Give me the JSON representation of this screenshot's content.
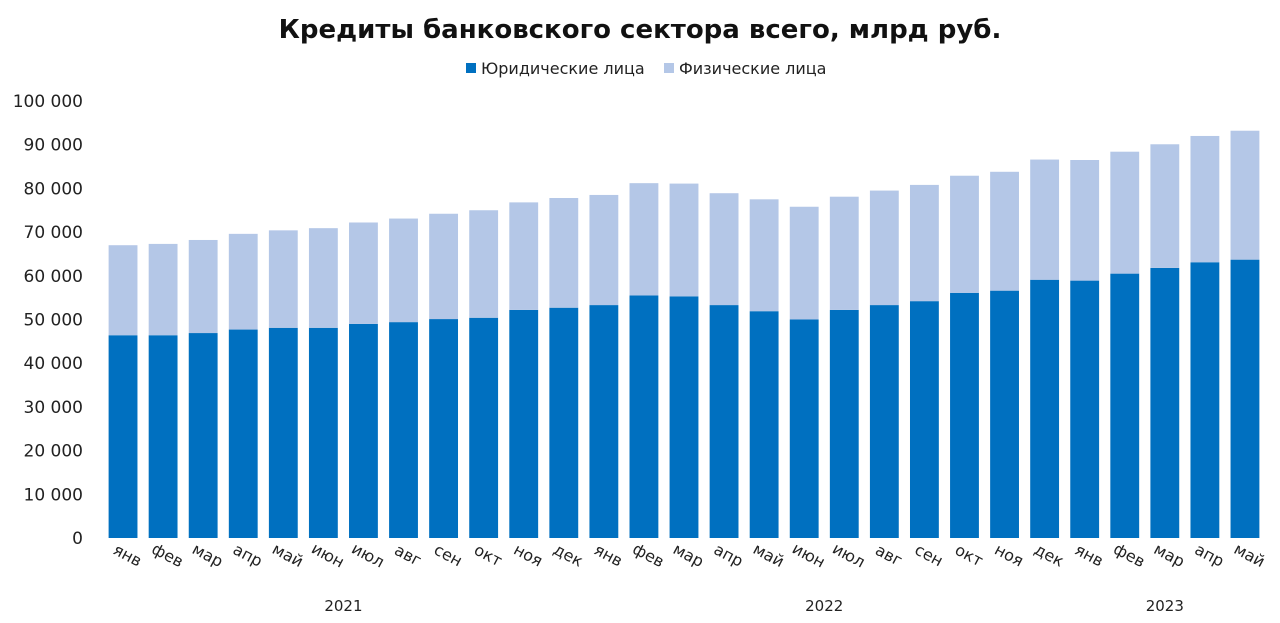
{
  "chart_data": {
    "type": "bar",
    "stacked": true,
    "title": "Кредиты банковского сектора всего, млрд руб.",
    "xlabel": "",
    "ylabel": "",
    "ylim": [
      0,
      100000
    ],
    "yticks": [
      "0",
      "10 000",
      "20 000",
      "30 000",
      "40 000",
      "50 000",
      "60 000",
      "70 000",
      "80 000",
      "90 000",
      "100 000"
    ],
    "legend_position": "top",
    "categories": [
      "янв",
      "фев",
      "мар",
      "апр",
      "май",
      "июн",
      "июл",
      "авг",
      "сен",
      "окт",
      "ноя",
      "дек",
      "янв",
      "фев",
      "мар",
      "апр",
      "май",
      "июн",
      "июл",
      "авг",
      "сен",
      "окт",
      "ноя",
      "дек",
      "янв",
      "фев",
      "мар",
      "апр",
      "май"
    ],
    "year_labels": [
      {
        "label": "2021",
        "span": [
          0,
          11
        ]
      },
      {
        "label": "2022",
        "span": [
          12,
          23
        ]
      },
      {
        "label": "2023",
        "span": [
          24,
          28
        ]
      }
    ],
    "series": [
      {
        "name": "Юридические лица",
        "color": "#0070c0",
        "values": [
          46400,
          46400,
          46900,
          47700,
          48100,
          48100,
          49000,
          49400,
          50100,
          50400,
          52200,
          52700,
          53300,
          55500,
          55300,
          53300,
          51900,
          50000,
          52200,
          53300,
          54200,
          56100,
          56600,
          59100,
          58900,
          60500,
          61800,
          63100,
          63700
        ]
      },
      {
        "name": "Физические лица",
        "color": "#b4c7e7",
        "values": [
          20600,
          20900,
          21300,
          21900,
          22300,
          22800,
          23200,
          23700,
          24100,
          24600,
          24600,
          25100,
          25200,
          25700,
          25800,
          25600,
          25600,
          25800,
          25900,
          26200,
          26600,
          26800,
          27200,
          27500,
          27600,
          27900,
          28300,
          28900,
          29500
        ]
      }
    ]
  }
}
